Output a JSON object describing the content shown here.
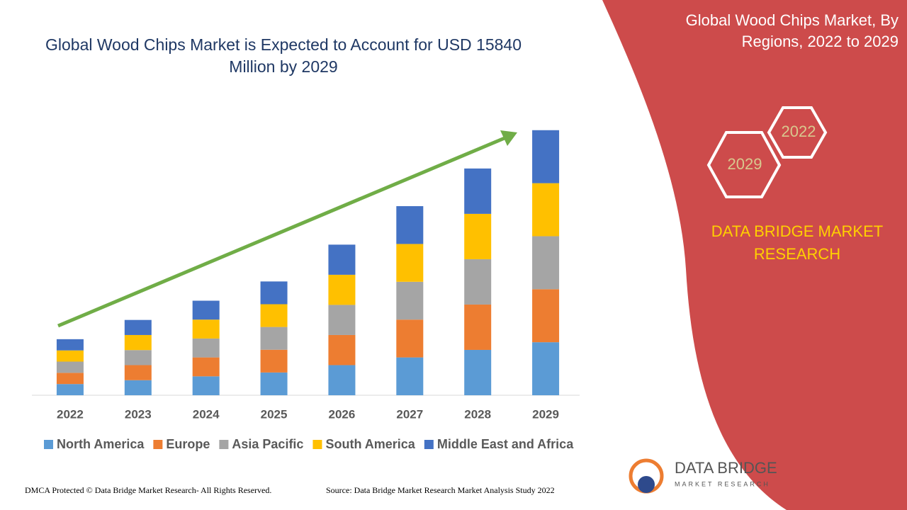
{
  "chart_data": {
    "type": "stacked_bar",
    "title": "Global Wood Chips Market is Expected to Account for USD 15840 Million by 2029",
    "categories": [
      "2022",
      "2023",
      "2024",
      "2025",
      "2026",
      "2027",
      "2028",
      "2029"
    ],
    "series": [
      {
        "name": "North America",
        "color": "#5b9bd5",
        "values": [
          670,
          900,
          1130,
          1360,
          1800,
          2260,
          2710,
          3168
        ]
      },
      {
        "name": "Europe",
        "color": "#ed7d31",
        "values": [
          670,
          900,
          1130,
          1360,
          1800,
          2260,
          2710,
          3168
        ]
      },
      {
        "name": "Asia Pacific",
        "color": "#a5a5a5",
        "values": [
          670,
          900,
          1130,
          1360,
          1800,
          2260,
          2710,
          3168
        ]
      },
      {
        "name": "South America",
        "color": "#ffc000",
        "values": [
          670,
          900,
          1130,
          1360,
          1800,
          2260,
          2710,
          3168
        ]
      },
      {
        "name": "Middle East and Africa",
        "color": "#4472c4",
        "values": [
          670,
          900,
          1130,
          1360,
          1800,
          2260,
          2710,
          3168
        ]
      }
    ],
    "ylim": [
      0,
      16000
    ],
    "legend": "bottom"
  },
  "panel": {
    "heading": "Global Wood Chips Market, By Regions, 2022 to 2029",
    "hex_labels": [
      "2022",
      "2029"
    ],
    "brand": "DATA BRIDGE MARKET RESEARCH"
  },
  "footer": {
    "copyright": "DMCA Protected © Data Bridge Market Research- All Rights Reserved.",
    "source": "Source: Data Bridge Market Research Market Analysis Study 2022",
    "logo_name": "DATA BRIDGE",
    "logo_sub": "MARKET RESEARCH"
  }
}
